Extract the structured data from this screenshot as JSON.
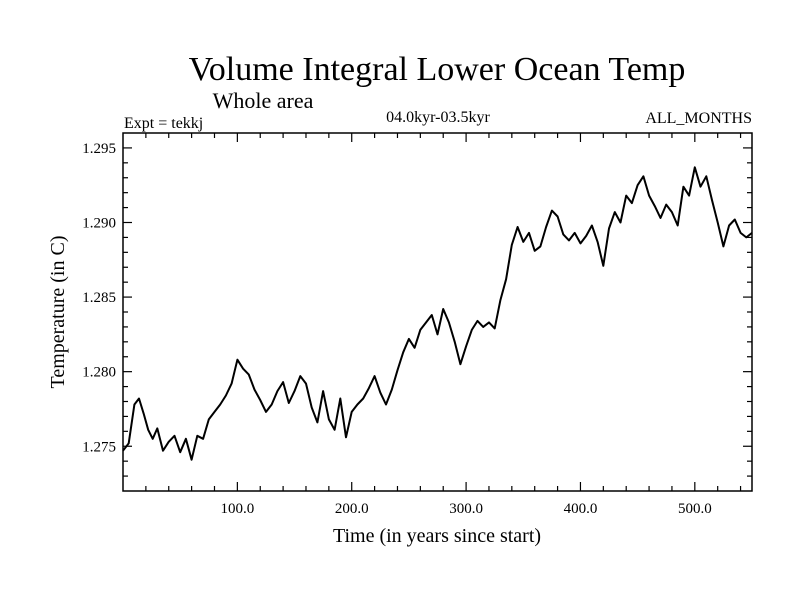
{
  "chart_data": {
    "type": "line",
    "title": "Volume Integral Lower Ocean Temp",
    "subtitle": "Whole area",
    "experiment": "Expt = tekkj",
    "period": "04.0kyr-03.5kyr",
    "months": "ALL_MONTHS",
    "xlabel": "Time (in years since start)",
    "ylabel": "Temperature (in C)",
    "xlim": [
      0,
      550
    ],
    "ylim": [
      1.272,
      1.296
    ],
    "xticks": [
      100,
      200,
      300,
      400,
      500
    ],
    "xtick_labels": [
      "100.0",
      "200.0",
      "300.0",
      "400.0",
      "500.0"
    ],
    "yticks": [
      1.275,
      1.28,
      1.285,
      1.29,
      1.295
    ],
    "ytick_labels": [
      "1.275",
      "1.280",
      "1.285",
      "1.290",
      "1.295"
    ],
    "series": [
      {
        "name": "temperature",
        "x": [
          0,
          5,
          10,
          14,
          18,
          22,
          26,
          30,
          35,
          40,
          45,
          50,
          55,
          60,
          65,
          70,
          75,
          80,
          85,
          90,
          95,
          100,
          105,
          110,
          115,
          120,
          125,
          130,
          135,
          140,
          145,
          150,
          155,
          160,
          165,
          170,
          175,
          180,
          185,
          190,
          195,
          200,
          205,
          210,
          215,
          220,
          225,
          230,
          235,
          240,
          245,
          250,
          255,
          260,
          265,
          270,
          275,
          280,
          285,
          290,
          295,
          300,
          305,
          310,
          315,
          320,
          325,
          330,
          335,
          340,
          345,
          350,
          355,
          360,
          365,
          370,
          375,
          380,
          385,
          390,
          395,
          400,
          405,
          410,
          415,
          420,
          425,
          430,
          435,
          440,
          445,
          450,
          455,
          460,
          465,
          470,
          475,
          480,
          485,
          490,
          495,
          500,
          505,
          510,
          515,
          520,
          525,
          530,
          535,
          540,
          545,
          550
        ],
        "values": [
          1.2747,
          1.2752,
          1.2778,
          1.2782,
          1.2772,
          1.2761,
          1.2755,
          1.2762,
          1.2747,
          1.2753,
          1.2757,
          1.2746,
          1.2755,
          1.2741,
          1.2757,
          1.2755,
          1.2768,
          1.2773,
          1.2778,
          1.2784,
          1.2792,
          1.2808,
          1.2802,
          1.2798,
          1.2788,
          1.2781,
          1.2773,
          1.2778,
          1.2787,
          1.2793,
          1.2779,
          1.2787,
          1.2797,
          1.2792,
          1.2776,
          1.2766,
          1.2787,
          1.2768,
          1.2761,
          1.2782,
          1.2756,
          1.2773,
          1.2778,
          1.2782,
          1.2789,
          1.2797,
          1.2786,
          1.2778,
          1.2788,
          1.2801,
          1.2813,
          1.2822,
          1.2816,
          1.2828,
          1.2833,
          1.2838,
          1.2825,
          1.2842,
          1.2833,
          1.282,
          1.2805,
          1.2817,
          1.2828,
          1.2834,
          1.283,
          1.2833,
          1.2829,
          1.2848,
          1.2862,
          1.2885,
          1.2897,
          1.2887,
          1.2893,
          1.2881,
          1.2884,
          1.2897,
          1.2908,
          1.2904,
          1.2892,
          1.2888,
          1.2893,
          1.2886,
          1.2891,
          1.2898,
          1.2887,
          1.2871,
          1.2896,
          1.2907,
          1.29,
          1.2918,
          1.2913,
          1.2925,
          1.2931,
          1.2918,
          1.2911,
          1.2903,
          1.2912,
          1.2907,
          1.2898,
          1.2924,
          1.2918,
          1.2937,
          1.2924,
          1.2931,
          1.2915,
          1.29,
          1.2884,
          1.2898,
          1.2902,
          1.2893,
          1.289,
          1.2893
        ]
      }
    ]
  }
}
